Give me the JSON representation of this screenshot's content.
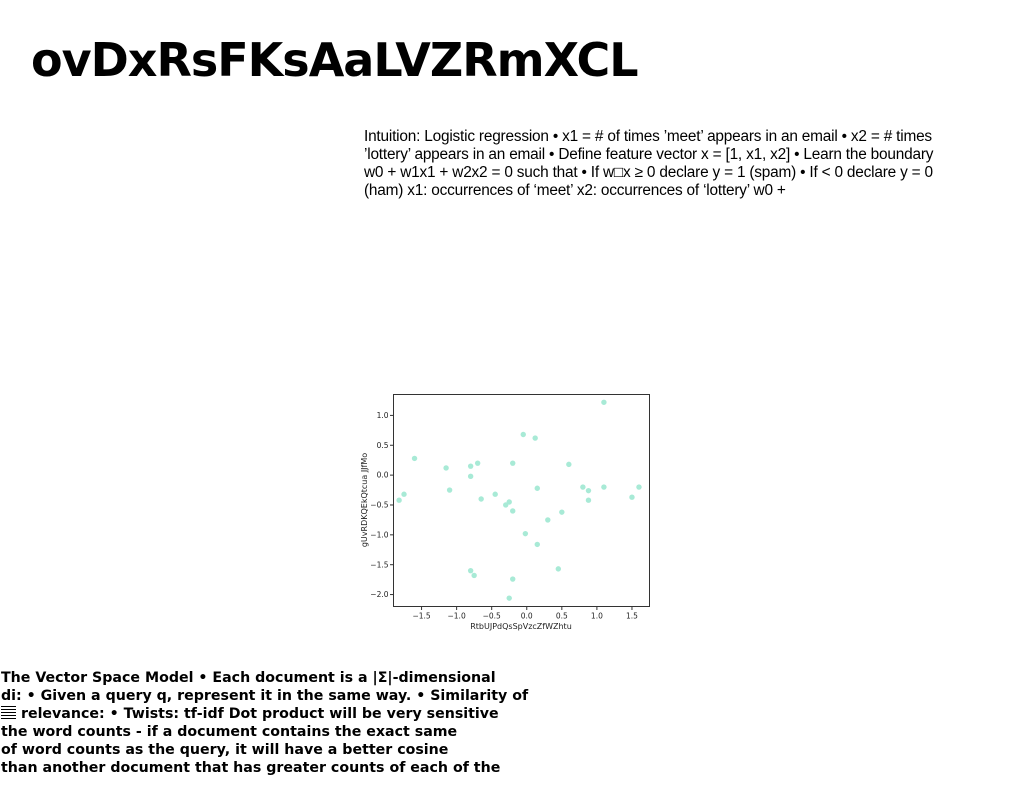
{
  "title": "ovDxRsFKsAaLVZRmXCL",
  "paragraph_top": "Intuition: Logistic regression • x1 = # of times ’meet’ appears in an email • x2 = # times ’lottery’ appears in an email • Define feature vector x = [1, x1, x2] • Learn the boundary w0 + w1x1 + w2x2 = 0 such that • If w□x ≥ 0 declare y = 1 (spam) • If < 0 declare y = 0 (ham) x1: occurrences of ‘meet’ x2: occurrences of ‘lottery’ w0 +",
  "paragraph_bottom": {
    "line1": "The Vector Space Model • Each document is a |Σ|-dimensional",
    "line2": "di: • Given a query q, represent it in the same way. • Similarity of",
    "line3": "relevance: • Twists:  tf-idf Dot product will be very sensitive",
    "line4": "the word counts - if a document contains the exact same",
    "line5": "of word counts as the query, it will have a better cosine",
    "line6": "than another document that has greater counts of each of the"
  },
  "chart_data": {
    "type": "scatter",
    "xlabel": "RtbUJPdQsSpVzcZfWZhtu",
    "ylabel": "gUvRDKQEkQtcua JJfMo",
    "xlim": [
      -1.9,
      1.75
    ],
    "ylim": [
      -2.2,
      1.35
    ],
    "xticks": [
      -1.5,
      -1.0,
      -0.5,
      0.0,
      0.5,
      1.0,
      1.5
    ],
    "xtick_labels": [
      "−1.5",
      "−1.0",
      "−0.5",
      "0.0",
      "0.5",
      "1.0",
      "1.5"
    ],
    "yticks": [
      -2.0,
      -1.5,
      -1.0,
      -0.5,
      0.0,
      0.5,
      1.0
    ],
    "ytick_labels": [
      "−2.0",
      "−1.5",
      "−1.0",
      "−0.5",
      "0.0",
      "0.5",
      "1.0"
    ],
    "grid": false,
    "point_color": "#a8ead6",
    "x": [
      1.1,
      -0.05,
      0.12,
      -1.6,
      -0.8,
      -0.7,
      -0.2,
      0.6,
      -1.15,
      -0.8,
      -1.1,
      0.15,
      0.8,
      1.1,
      0.88,
      1.6,
      -0.45,
      -1.75,
      -1.82,
      -0.65,
      -0.3,
      -0.25,
      -0.2,
      0.5,
      0.3,
      -0.02,
      0.15,
      -0.8,
      0.45,
      -0.75,
      -0.2,
      -0.25,
      1.5,
      0.88
    ],
    "y": [
      1.22,
      0.68,
      0.62,
      0.28,
      0.15,
      0.2,
      0.2,
      0.18,
      0.12,
      -0.02,
      -0.25,
      -0.22,
      -0.2,
      -0.2,
      -0.26,
      -0.2,
      -0.32,
      -0.32,
      -0.42,
      -0.4,
      -0.5,
      -0.45,
      -0.6,
      -0.62,
      -0.75,
      -0.98,
      -1.16,
      -1.6,
      -1.57,
      -1.68,
      -1.74,
      -2.06,
      -0.37,
      -0.42
    ]
  }
}
